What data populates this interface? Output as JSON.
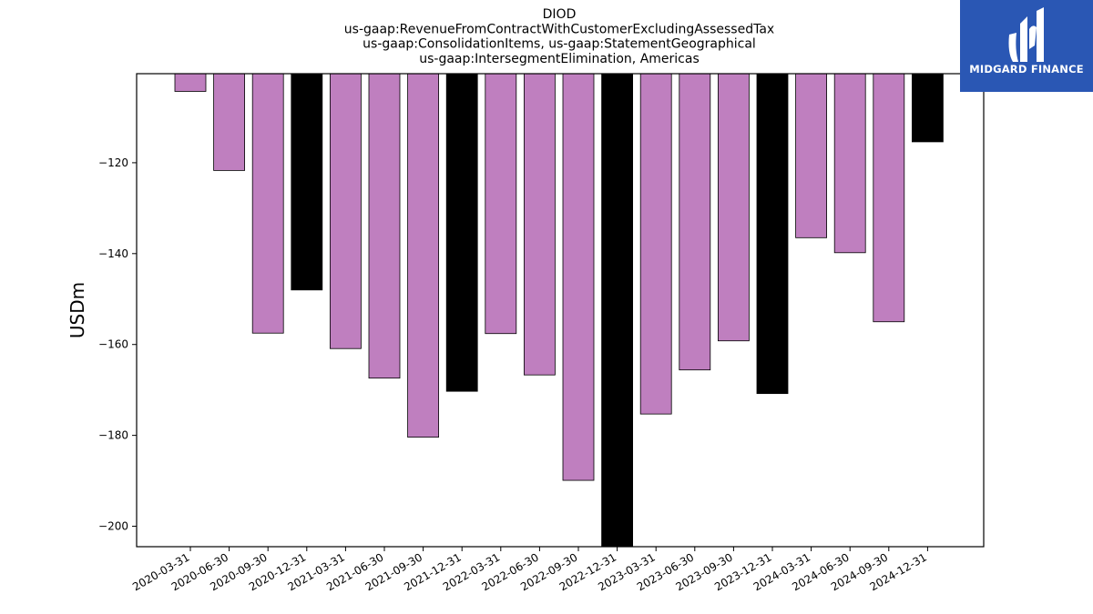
{
  "chart_data": {
    "type": "bar",
    "title_lines": [
      "DIOD",
      "us-gaap:RevenueFromContractWithCustomerExcludingAssessedTax",
      "us-gaap:ConsolidationItems, us-gaap:StatementGeographical",
      "us-gaap:IntersegmentElimination, Americas"
    ],
    "xlabel": "",
    "ylabel": "USDm",
    "ylim": [
      -204.5,
      -100.4
    ],
    "yticks": [
      -120,
      -140,
      -160,
      -180,
      -200
    ],
    "ytick_labels": [
      "−120",
      "−140",
      "−160",
      "−180",
      "−200"
    ],
    "categories": [
      "2020-03-31",
      "2020-06-30",
      "2020-09-30",
      "2020-12-31",
      "2021-03-31",
      "2021-06-30",
      "2021-09-30",
      "2021-12-31",
      "2022-03-31",
      "2022-06-30",
      "2022-09-30",
      "2022-12-31",
      "2023-03-31",
      "2023-06-30",
      "2023-09-30",
      "2023-12-31",
      "2024-03-31",
      "2024-06-30",
      "2024-09-30",
      "2024-12-31"
    ],
    "values": [
      -104.3,
      -121.7,
      -157.5,
      -148.0,
      -160.9,
      -167.4,
      -180.4,
      -170.3,
      -157.6,
      -166.7,
      -189.9,
      -204.5,
      -175.3,
      -165.6,
      -159.2,
      -170.8,
      -136.5,
      -139.8,
      -155.0,
      -115.4
    ],
    "bar_colors": [
      "#bf7fbf",
      "#bf7fbf",
      "#bf7fbf",
      "#000000",
      "#bf7fbf",
      "#bf7fbf",
      "#bf7fbf",
      "#000000",
      "#bf7fbf",
      "#bf7fbf",
      "#bf7fbf",
      "#000000",
      "#bf7fbf",
      "#bf7fbf",
      "#bf7fbf",
      "#000000",
      "#bf7fbf",
      "#bf7fbf",
      "#bf7fbf",
      "#000000"
    ],
    "grid": false,
    "legend": "none"
  },
  "logo": {
    "text": "MIDGARD FINANCE",
    "background": "#2a57b4"
  }
}
